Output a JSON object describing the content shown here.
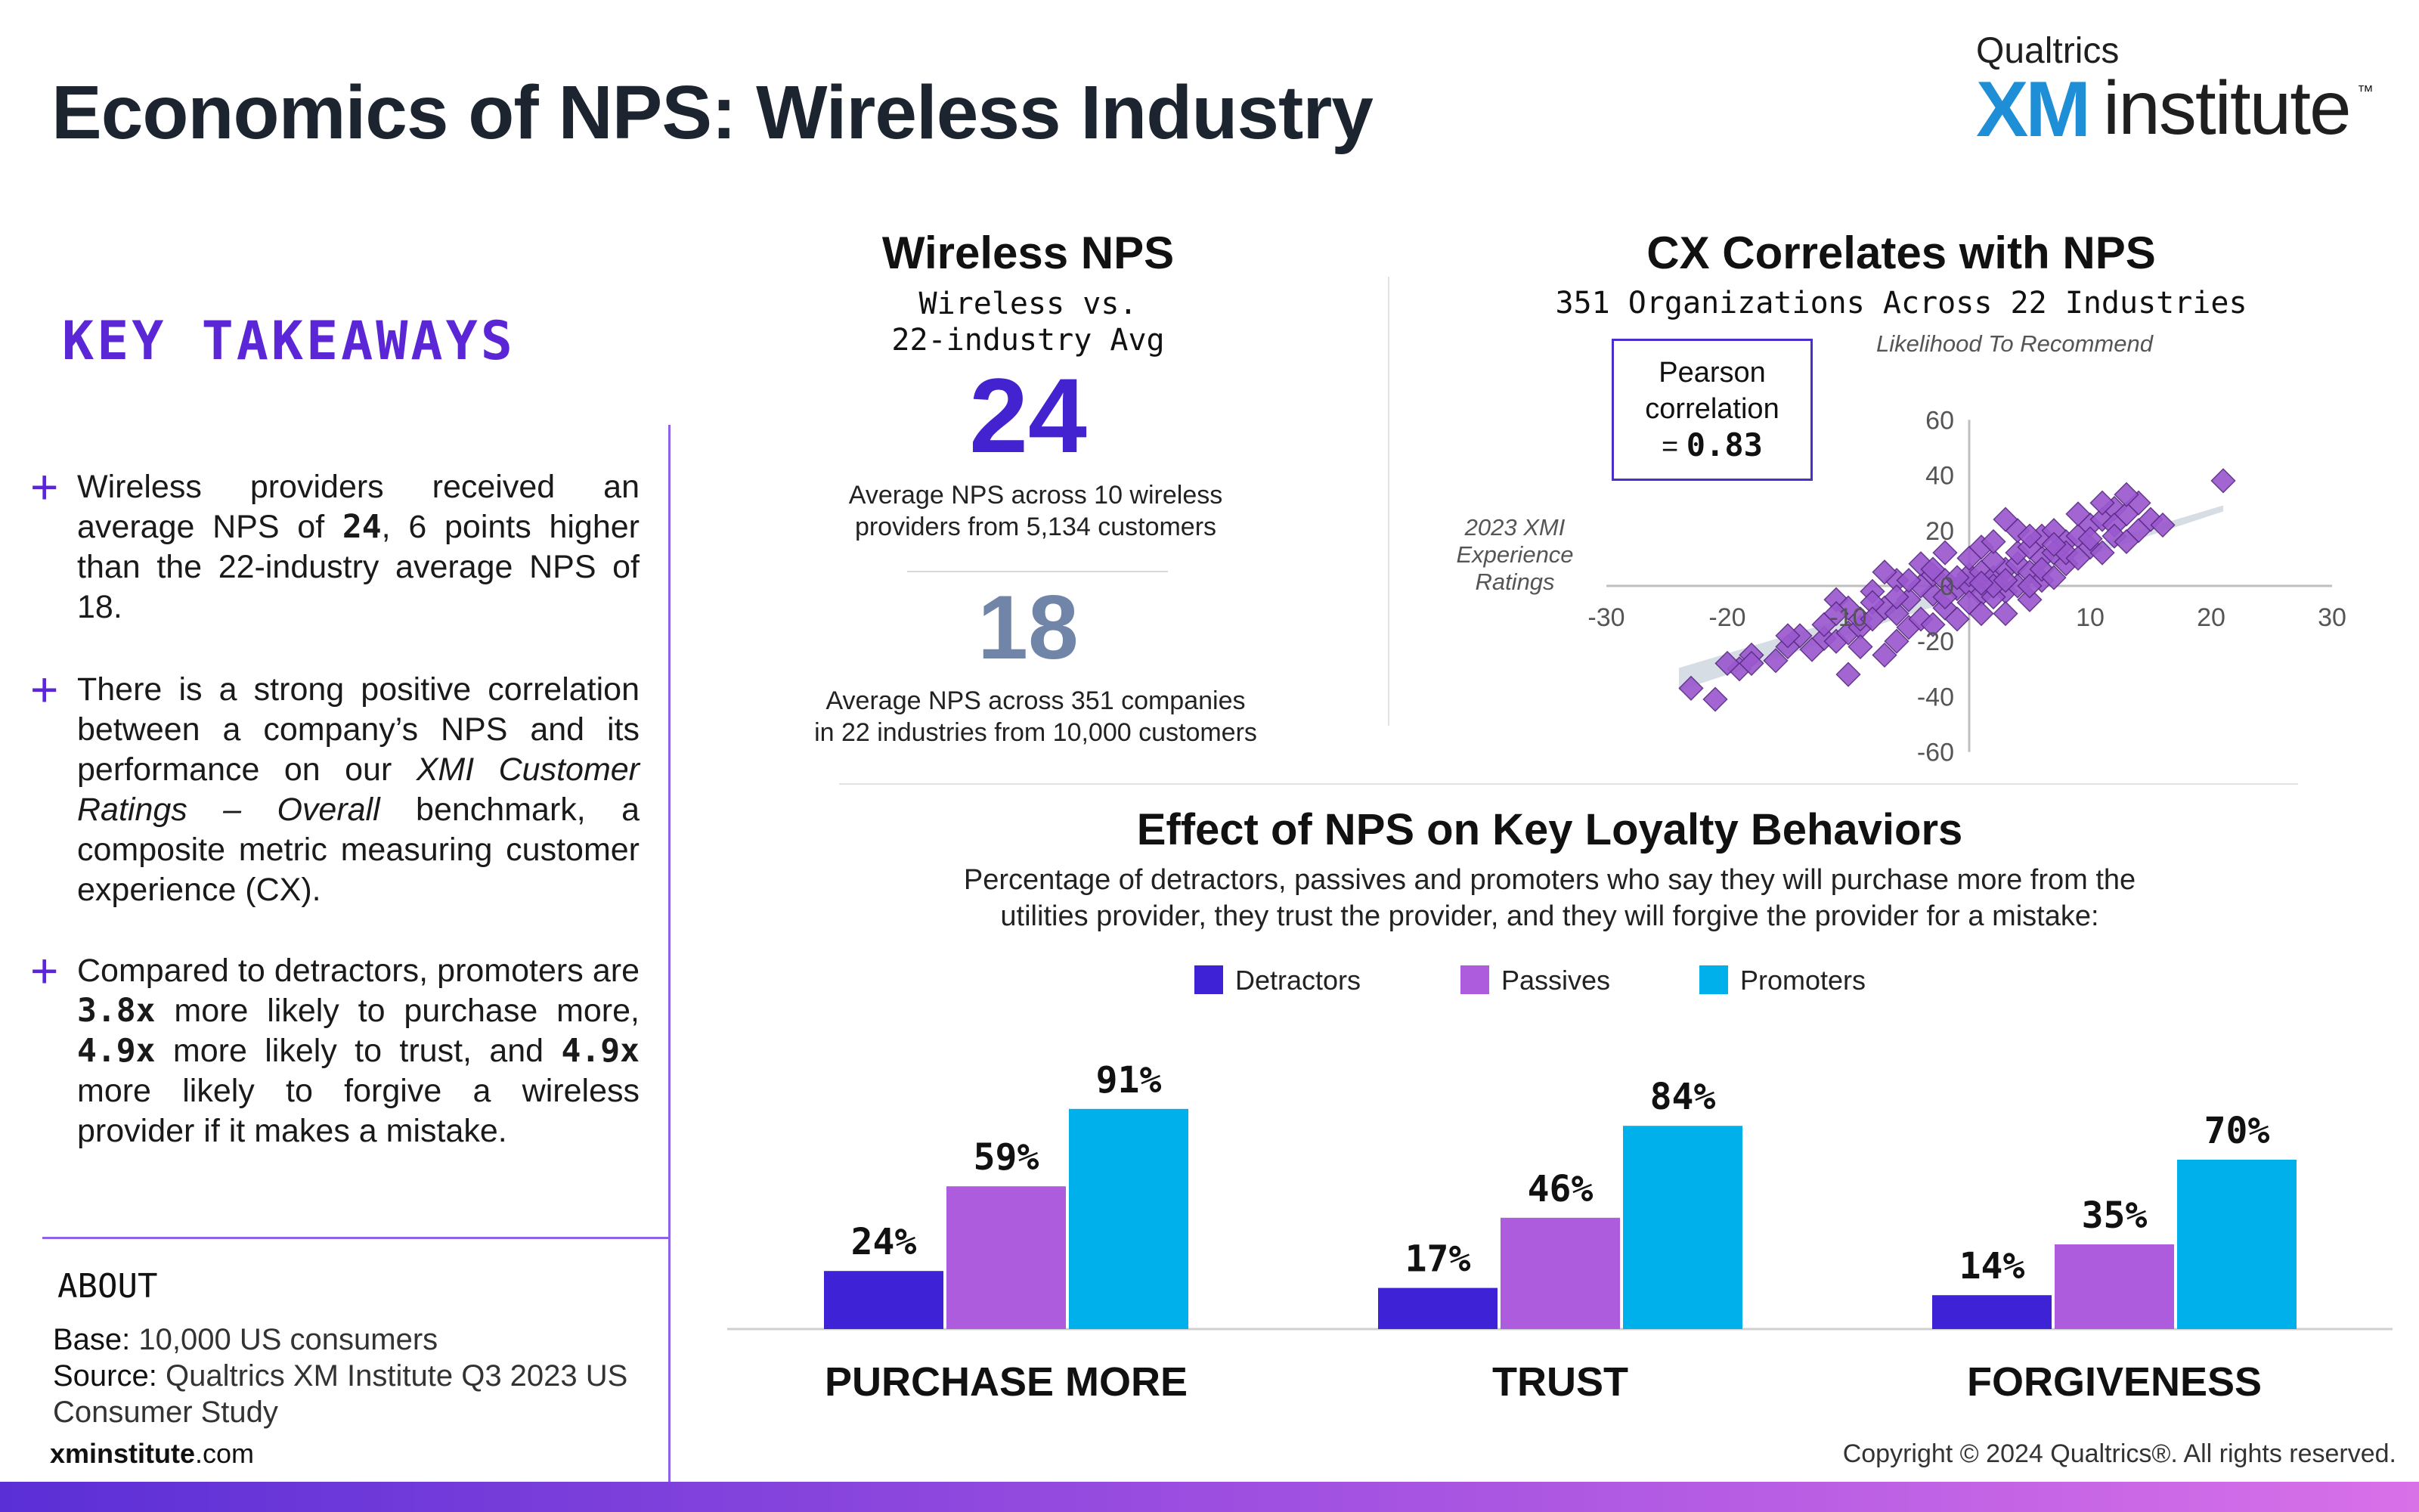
{
  "header": {
    "title": "Economics of NPS: Wireless Industry",
    "logo_top": "Qualtrics",
    "logo_xm": "XM",
    "logo_rest": "institute",
    "logo_tm": "™"
  },
  "takeaways": {
    "title": "KEY TAKEAWAYS",
    "plus": "+",
    "t1a": "Wireless providers received an average NPS of ",
    "t1b": "24",
    "t1c": ", 6 points higher than the 22-industry average NPS of 18.",
    "t2a": "There is a strong positive correlation between a company’s NPS and its performance on our ",
    "t2b": "XMI Customer Ratings – Overall",
    "t2c": " benchmark, a composite metric measuring customer experience (CX).",
    "t3a": "Compared to detractors, promoters are ",
    "t3b": "3.8x",
    "t3c": " more likely to purchase more, ",
    "t3d": "4.9x",
    "t3e": " more likely to trust, and ",
    "t3f": "4.9x",
    "t3g": " more likely to forgive a wireless provider if it makes a mistake."
  },
  "about": {
    "title": "ABOUT",
    "base_label": "Base:",
    "base_value": " 10,000 US consumers",
    "source_label": "Source:",
    "source_value": " Qualtrics XM Institute Q3 2023 US Consumer Study",
    "site_bold": "xminstitute",
    "site_rest": ".com"
  },
  "wireless_nps": {
    "title": "Wireless NPS",
    "subtitle_1": "Wireless vs.",
    "subtitle_2": "22-industry Avg",
    "value_main": "24",
    "note_main_1": "Average NPS across 10 wireless",
    "note_main_2": "providers from 5,134 customers",
    "value_avg": "18",
    "note_avg_1": "Average NPS across 351 companies",
    "note_avg_2": "in 22 industries from 10,000 customers"
  },
  "cx": {
    "title": "CX Correlates with NPS",
    "subtitle": "351 Organizations Across 22 Industries",
    "pearson_1": "Pearson",
    "pearson_2": "correlation",
    "pearson_eq": "= ",
    "pearson_val": "0.83"
  },
  "bars": {
    "title": "Effect of NPS on Key Loyalty Behaviors",
    "desc_1": "Percentage of detractors, passives and promoters who say they will purchase more from the",
    "desc_2": "utilities provider, they trust the provider, and they will forgive the provider for a mistake:"
  },
  "colors": {
    "detractors": "#3d22d6",
    "passives": "#ac5cdc",
    "promoters": "#00b0ea",
    "scatter": "#9b59cf",
    "big24": "#4322cf",
    "big18": "#7085a8"
  },
  "chart_data": [
    {
      "type": "scatter",
      "title": "CX Correlates with NPS",
      "subtitle": "351 Organizations Across 22 Industries",
      "xlabel": "2023 XMI Experience Ratings",
      "ylabel": "Likelihood To Recommend",
      "xlim": [
        -30,
        30
      ],
      "ylim": [
        -60,
        60
      ],
      "x_ticks": [
        -30,
        -20,
        -10,
        0,
        10,
        20,
        30
      ],
      "x_tick_labels": [
        "-30",
        "-20",
        "-10",
        "",
        "10",
        "20",
        "30"
      ],
      "y_ticks": [
        -60,
        -40,
        -20,
        0,
        20,
        40,
        60
      ],
      "y_tick_labels": [
        "-60",
        "-40",
        "-20",
        "0",
        "20",
        "40",
        "60"
      ],
      "trend": {
        "x": [
          -24,
          21
        ],
        "y": [
          -34,
          28
        ]
      },
      "points": [
        [
          21,
          38
        ],
        [
          -23,
          -37
        ],
        [
          -21,
          -41
        ],
        [
          -19,
          -30
        ],
        [
          -20,
          -28
        ],
        [
          -18,
          -25
        ],
        [
          -18,
          -28
        ],
        [
          -16,
          -27
        ],
        [
          -15,
          -22
        ],
        [
          -12,
          -19
        ],
        [
          -11,
          -20
        ],
        [
          -13,
          -23
        ],
        [
          -10,
          -17
        ],
        [
          -9,
          -15
        ],
        [
          -11,
          -5
        ],
        [
          -8,
          -2
        ],
        [
          -7,
          -8
        ],
        [
          -9,
          -12
        ],
        [
          -10,
          -32
        ],
        [
          -7,
          -25
        ],
        [
          -9,
          -22
        ],
        [
          -6,
          -20
        ],
        [
          -5,
          -15
        ],
        [
          -6,
          -10
        ],
        [
          -4,
          -12
        ],
        [
          -5,
          -5
        ],
        [
          -3,
          -3
        ],
        [
          -2,
          -8
        ],
        [
          -4,
          0
        ],
        [
          -3,
          4
        ],
        [
          -2,
          2
        ],
        [
          -1,
          -1
        ],
        [
          0,
          0
        ],
        [
          1,
          -3
        ],
        [
          0,
          4
        ],
        [
          1,
          5
        ],
        [
          2,
          3
        ],
        [
          3,
          6
        ],
        [
          2,
          9
        ],
        [
          4,
          8
        ],
        [
          3,
          -2
        ],
        [
          5,
          5
        ],
        [
          4,
          12
        ],
        [
          6,
          10
        ],
        [
          5,
          14
        ],
        [
          7,
          12
        ],
        [
          6,
          18
        ],
        [
          8,
          16
        ],
        [
          7,
          20
        ],
        [
          9,
          18
        ],
        [
          10,
          22
        ],
        [
          11,
          24
        ],
        [
          9,
          26
        ],
        [
          12,
          28
        ],
        [
          11,
          30
        ],
        [
          13,
          26
        ],
        [
          12,
          22
        ],
        [
          14,
          30
        ],
        [
          13,
          33
        ],
        [
          14,
          20
        ],
        [
          15,
          24
        ],
        [
          16,
          22
        ],
        [
          10,
          14
        ],
        [
          8,
          8
        ],
        [
          6,
          2
        ],
        [
          5,
          -5
        ],
        [
          3,
          -10
        ],
        [
          1,
          -10
        ],
        [
          -1,
          -12
        ],
        [
          -3,
          -14
        ],
        [
          -2,
          12
        ],
        [
          0,
          10
        ],
        [
          1,
          14
        ],
        [
          2,
          16
        ],
        [
          4,
          20
        ],
        [
          3,
          24
        ],
        [
          -6,
          2
        ],
        [
          -7,
          5
        ],
        [
          -4,
          8
        ],
        [
          -5,
          2
        ],
        [
          -2,
          -4
        ],
        [
          0,
          -6
        ],
        [
          2,
          -4
        ],
        [
          4,
          0
        ],
        [
          6,
          6
        ],
        [
          8,
          12
        ],
        [
          10,
          17
        ],
        [
          12,
          18
        ],
        [
          -12,
          -14
        ],
        [
          -14,
          -18
        ],
        [
          -8,
          -6
        ],
        [
          -6,
          -4
        ],
        [
          2,
          0
        ],
        [
          -1,
          3
        ],
        [
          1,
          1
        ],
        [
          3,
          2
        ],
        [
          5,
          0
        ],
        [
          7,
          3
        ],
        [
          9,
          10
        ],
        [
          11,
          12
        ],
        [
          -10,
          -8
        ],
        [
          -8,
          -12
        ],
        [
          -3,
          6
        ],
        [
          5,
          18
        ],
        [
          7,
          15
        ],
        [
          13,
          16
        ],
        [
          -15,
          -18
        ],
        [
          -11,
          -10
        ]
      ]
    },
    {
      "type": "bar",
      "title": "Effect of NPS on Key Loyalty Behaviors",
      "categories": [
        "PURCHASE MORE",
        "TRUST",
        "FORGIVENESS"
      ],
      "series": [
        {
          "name": "Detractors",
          "values": [
            24,
            17,
            14
          ]
        },
        {
          "name": "Passives",
          "values": [
            59,
            46,
            35
          ]
        },
        {
          "name": "Promoters",
          "values": [
            91,
            84,
            70
          ]
        }
      ],
      "value_suffix": "%",
      "ylim": [
        0,
        100
      ],
      "legend": "top"
    }
  ],
  "footer": {
    "copyright": "Copyright © 2024 Qualtrics®. All rights reserved."
  }
}
